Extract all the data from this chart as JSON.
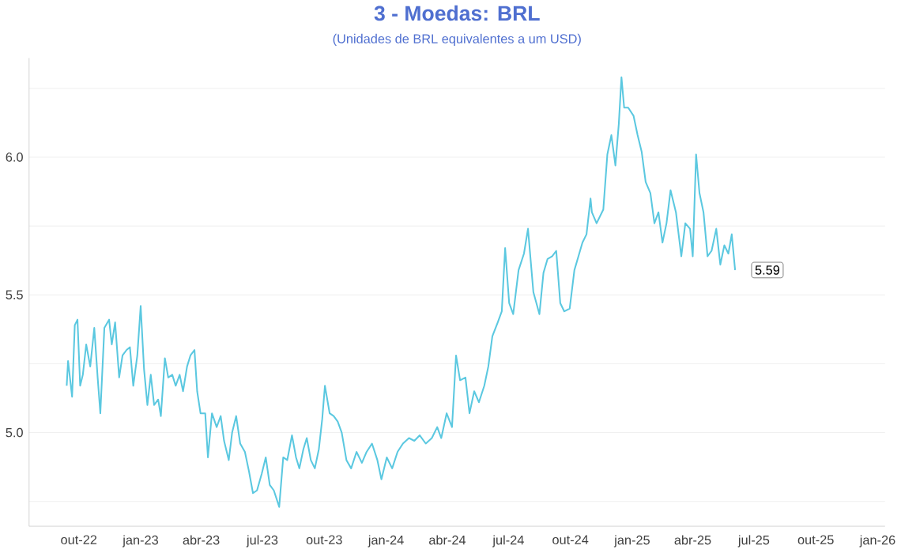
{
  "chart_data": {
    "type": "line",
    "title": "3 - Moedas: BRL",
    "subtitle": "(Unidades de BRL equivalentes a um USD)",
    "x": [
      "2022-09-13",
      "2022-09-15",
      "2022-09-21",
      "2022-09-25",
      "2022-09-29",
      "2022-10-03",
      "2022-10-07",
      "2022-10-12",
      "2022-10-18",
      "2022-10-24",
      "2022-10-29",
      "2022-11-02",
      "2022-11-08",
      "2022-11-15",
      "2022-11-19",
      "2022-11-24",
      "2022-11-30",
      "2022-12-05",
      "2022-12-11",
      "2022-12-16",
      "2022-12-21",
      "2022-12-27",
      "2023-01-01",
      "2023-01-06",
      "2023-01-11",
      "2023-01-16",
      "2023-01-21",
      "2023-01-27",
      "2023-01-31",
      "2023-02-06",
      "2023-02-11",
      "2023-02-17",
      "2023-02-22",
      "2023-02-28",
      "2023-03-05",
      "2023-03-11",
      "2023-03-16",
      "2023-03-22",
      "2023-03-26",
      "2023-03-31",
      "2023-04-07",
      "2023-04-11",
      "2023-04-17",
      "2023-04-24",
      "2023-04-30",
      "2023-05-05",
      "2023-05-12",
      "2023-05-17",
      "2023-05-23",
      "2023-05-29",
      "2023-06-05",
      "2023-06-11",
      "2023-06-17",
      "2023-06-23",
      "2023-06-30",
      "2023-07-06",
      "2023-07-12",
      "2023-07-18",
      "2023-07-26",
      "2023-08-01",
      "2023-08-07",
      "2023-08-14",
      "2023-08-20",
      "2023-08-25",
      "2023-08-31",
      "2023-09-05",
      "2023-09-11",
      "2023-09-17",
      "2023-09-23",
      "2023-09-28",
      "2023-10-02",
      "2023-10-09",
      "2023-10-15",
      "2023-10-21",
      "2023-10-27",
      "2023-11-03",
      "2023-11-10",
      "2023-11-18",
      "2023-11-26",
      "2023-12-03",
      "2023-12-11",
      "2023-12-19",
      "2023-12-25",
      "2024-01-02",
      "2024-01-10",
      "2024-01-18",
      "2024-01-26",
      "2024-02-04",
      "2024-02-12",
      "2024-02-20",
      "2024-02-29",
      "2024-03-09",
      "2024-03-17",
      "2024-03-23",
      "2024-03-31",
      "2024-04-08",
      "2024-04-14",
      "2024-04-20",
      "2024-04-28",
      "2024-05-04",
      "2024-05-11",
      "2024-05-18",
      "2024-05-26",
      "2024-06-01",
      "2024-06-07",
      "2024-06-15",
      "2024-06-21",
      "2024-06-26",
      "2024-07-02",
      "2024-07-08",
      "2024-07-16",
      "2024-07-24",
      "2024-07-30",
      "2024-08-07",
      "2024-08-16",
      "2024-08-22",
      "2024-08-28",
      "2024-09-04",
      "2024-09-10",
      "2024-09-16",
      "2024-09-22",
      "2024-09-30",
      "2024-10-07",
      "2024-10-13",
      "2024-10-19",
      "2024-10-25",
      "2024-10-31",
      "2024-11-02",
      "2024-11-09",
      "2024-11-19",
      "2024-11-25",
      "2024-12-01",
      "2024-12-07",
      "2024-12-12",
      "2024-12-16",
      "2024-12-20",
      "2024-12-26",
      "2025-01-03",
      "2025-01-09",
      "2025-01-15",
      "2025-01-21",
      "2025-01-28",
      "2025-02-03",
      "2025-02-09",
      "2025-02-15",
      "2025-02-21",
      "2025-02-27",
      "2025-03-07",
      "2025-03-15",
      "2025-03-21",
      "2025-03-28",
      "2025-04-01",
      "2025-04-06",
      "2025-04-11",
      "2025-04-17",
      "2025-04-23",
      "2025-04-29",
      "2025-05-06",
      "2025-05-12",
      "2025-05-18",
      "2025-05-24",
      "2025-05-29",
      "2025-06-03"
    ],
    "series": [
      {
        "color": "#5bc8e0",
        "values": [
          5.17,
          5.26,
          5.13,
          5.39,
          5.41,
          5.17,
          5.21,
          5.32,
          5.24,
          5.38,
          5.2,
          5.07,
          5.38,
          5.41,
          5.32,
          5.4,
          5.2,
          5.28,
          5.3,
          5.31,
          5.17,
          5.28,
          5.46,
          5.23,
          5.1,
          5.21,
          5.1,
          5.12,
          5.06,
          5.27,
          5.2,
          5.21,
          5.17,
          5.21,
          5.15,
          5.24,
          5.28,
          5.3,
          5.15,
          5.07,
          5.07,
          4.91,
          5.07,
          5.02,
          5.06,
          4.97,
          4.9,
          5.0,
          5.06,
          4.96,
          4.93,
          4.86,
          4.78,
          4.79,
          4.85,
          4.91,
          4.81,
          4.79,
          4.73,
          4.91,
          4.9,
          4.99,
          4.91,
          4.87,
          4.94,
          4.98,
          4.9,
          4.87,
          4.94,
          5.05,
          5.17,
          5.07,
          5.06,
          5.04,
          5.0,
          4.9,
          4.87,
          4.93,
          4.89,
          4.93,
          4.96,
          4.9,
          4.83,
          4.91,
          4.87,
          4.93,
          4.96,
          4.98,
          4.97,
          4.99,
          4.96,
          4.98,
          5.02,
          4.98,
          5.07,
          5.02,
          5.28,
          5.19,
          5.2,
          5.07,
          5.15,
          5.11,
          5.17,
          5.24,
          5.35,
          5.4,
          5.44,
          5.67,
          5.47,
          5.43,
          5.59,
          5.65,
          5.74,
          5.51,
          5.43,
          5.58,
          5.63,
          5.64,
          5.66,
          5.47,
          5.44,
          5.45,
          5.59,
          5.64,
          5.69,
          5.72,
          5.85,
          5.8,
          5.76,
          5.81,
          6.01,
          6.08,
          5.97,
          6.12,
          6.29,
          6.18,
          6.18,
          6.15,
          6.08,
          6.02,
          5.91,
          5.87,
          5.76,
          5.8,
          5.69,
          5.76,
          5.88,
          5.8,
          5.64,
          5.76,
          5.74,
          5.64,
          6.01,
          5.87,
          5.8,
          5.64,
          5.66,
          5.74,
          5.61,
          5.68,
          5.65,
          5.72,
          5.59
        ]
      }
    ],
    "xlim": [
      "2022-07-19",
      "2026-01-12"
    ],
    "xticks": [
      {
        "value": "2022-10-01",
        "label": "out-22"
      },
      {
        "value": "2023-01-01",
        "label": "jan-23"
      },
      {
        "value": "2023-04-01",
        "label": "abr-23"
      },
      {
        "value": "2023-07-01",
        "label": "jul-23"
      },
      {
        "value": "2023-10-01",
        "label": "out-23"
      },
      {
        "value": "2024-01-01",
        "label": "jan-24"
      },
      {
        "value": "2024-04-01",
        "label": "abr-24"
      },
      {
        "value": "2024-07-01",
        "label": "jul-24"
      },
      {
        "value": "2024-10-01",
        "label": "out-24"
      },
      {
        "value": "2025-01-01",
        "label": "jan-25"
      },
      {
        "value": "2025-04-01",
        "label": "abr-25"
      },
      {
        "value": "2025-07-01",
        "label": "jul-25"
      },
      {
        "value": "2025-10-01",
        "label": "out-25"
      },
      {
        "value": "2026-01-01",
        "label": "jan-26"
      }
    ],
    "ylim": [
      4.66,
      6.36
    ],
    "yticks": [
      {
        "value": 4.75,
        "label": null
      },
      {
        "value": 5,
        "label": "5.0"
      },
      {
        "value": 5.25,
        "label": null
      },
      {
        "value": 5.5,
        "label": "5.5"
      },
      {
        "value": 5.75,
        "label": null
      },
      {
        "value": 6,
        "label": "6.0"
      },
      {
        "value": 6.25,
        "label": null
      }
    ],
    "grid": "y",
    "annotations": [
      {
        "text": "5.59",
        "x": "2025-06-03",
        "y": 5.59
      }
    ]
  }
}
